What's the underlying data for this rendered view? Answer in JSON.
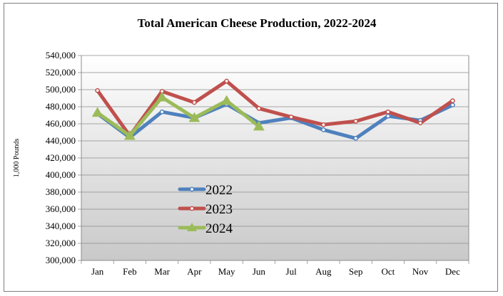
{
  "chart_data": {
    "type": "line",
    "title": "Total American Cheese Production, 2022-2024",
    "xlabel": "",
    "ylabel": "1,000 Pounds",
    "categories": [
      "Jan",
      "Feb",
      "Mar",
      "Apr",
      "May",
      "Jun",
      "Jul",
      "Aug",
      "Sep",
      "Oct",
      "Nov",
      "Dec"
    ],
    "ylim": [
      300000,
      540000
    ],
    "yticks": [
      "300,000",
      "320,000",
      "340,000",
      "360,000",
      "380,000",
      "400,000",
      "420,000",
      "440,000",
      "460,000",
      "480,000",
      "500,000",
      "520,000",
      "540,000"
    ],
    "grid": true,
    "legend_position": "lower-center",
    "series": [
      {
        "name": "2022",
        "color": "#4f81bd",
        "marker": "circle",
        "values": [
          472000,
          444000,
          474000,
          467000,
          483000,
          461000,
          467000,
          453000,
          443000,
          469000,
          464000,
          482000
        ]
      },
      {
        "name": "2023",
        "color": "#c0504d",
        "marker": "circle",
        "values": [
          499000,
          446000,
          498000,
          485000,
          510000,
          478000,
          468000,
          459000,
          463000,
          474000,
          461000,
          487000
        ]
      },
      {
        "name": "2024",
        "color": "#9bbb59",
        "marker": "triangle",
        "values": [
          473000,
          446000,
          491000,
          467000,
          487000,
          457000,
          null,
          null,
          null,
          null,
          null,
          null
        ]
      }
    ]
  }
}
